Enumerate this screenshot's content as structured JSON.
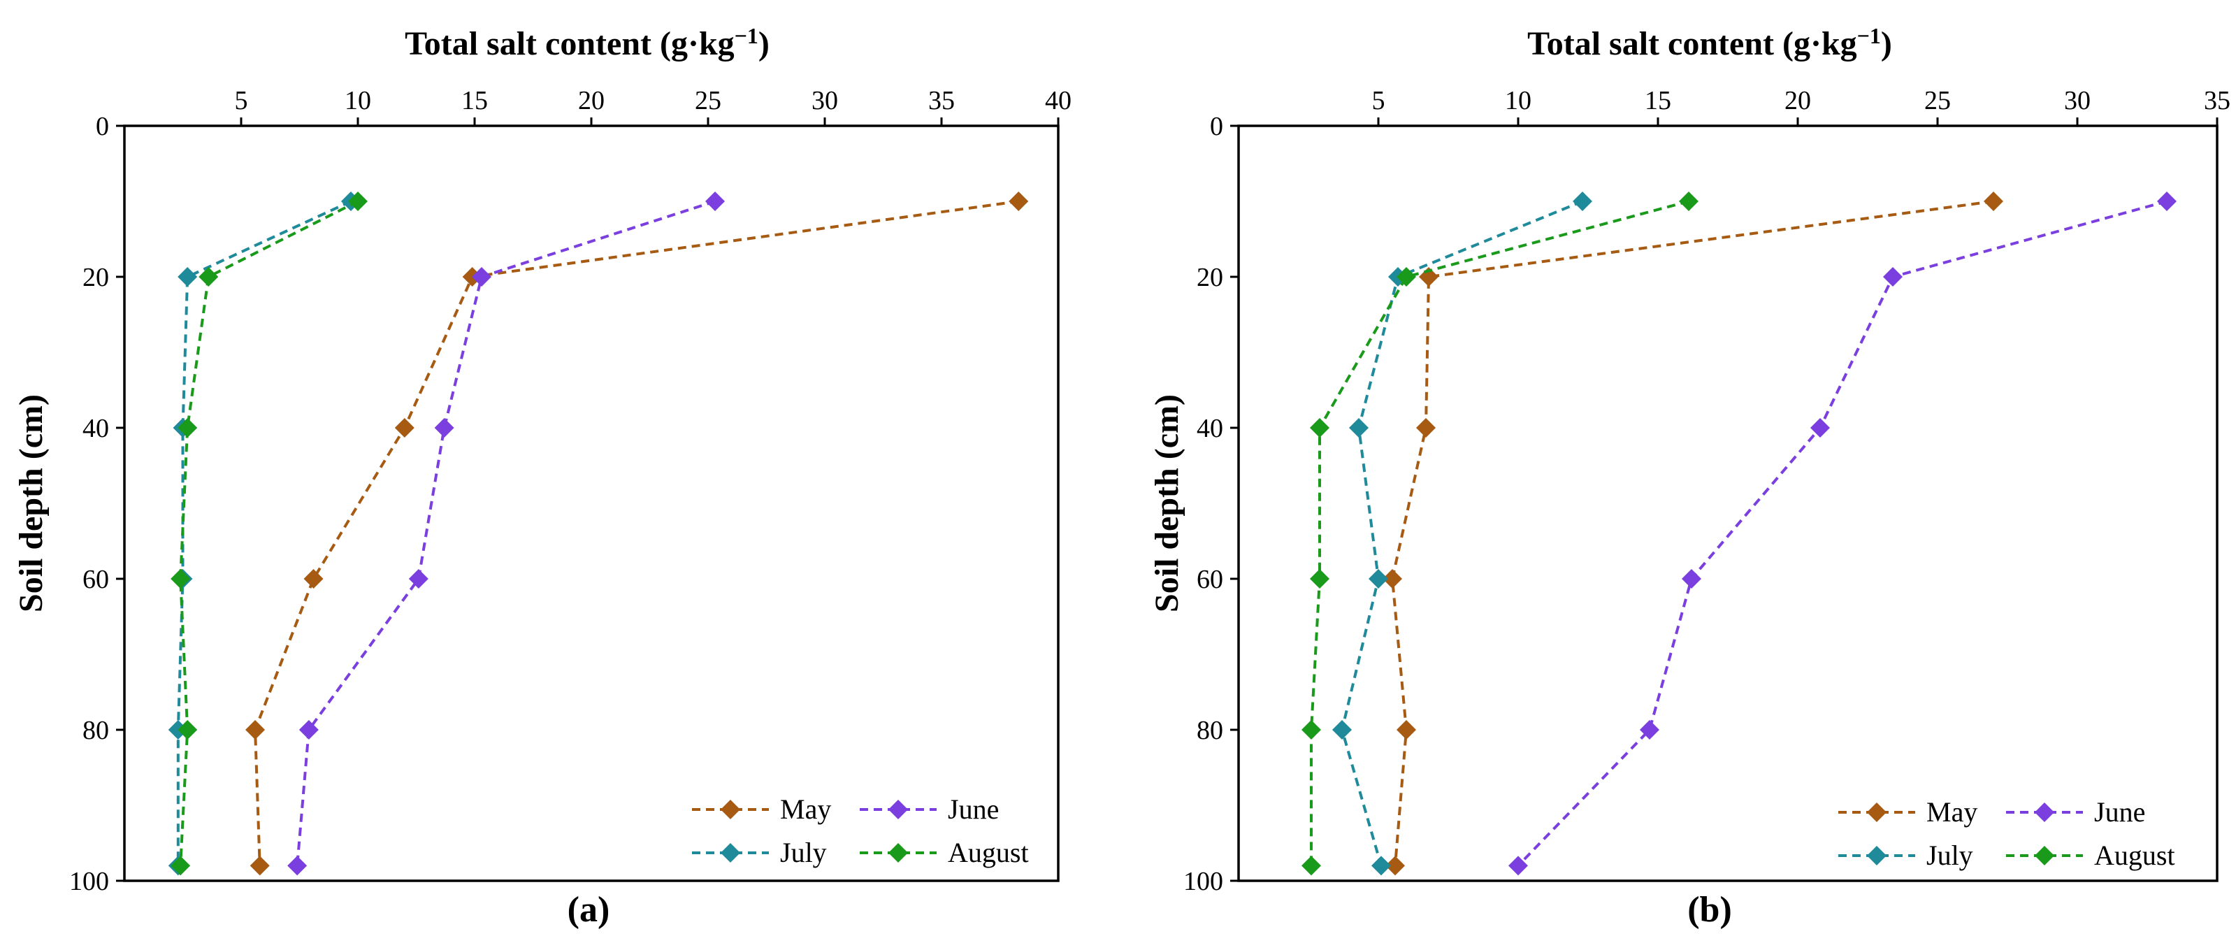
{
  "chart_data": [
    {
      "type": "line",
      "panel_label": "(a)",
      "xlabel": "Total salt content (g·kg",
      "xlabel_sup": "−1",
      "xlabel_end": ")",
      "ylabel": "Soil depth (cm)",
      "xlim": [
        0,
        40
      ],
      "xticks": [
        5,
        10,
        15,
        20,
        25,
        30,
        35,
        40
      ],
      "ylim": [
        0,
        100
      ],
      "yticks": [
        0,
        20,
        40,
        60,
        80,
        100
      ],
      "y_inverted": true,
      "x_axis_position": "top",
      "legend_position": "bottom-right",
      "depths": [
        10,
        20,
        40,
        60,
        80,
        98
      ],
      "series": [
        {
          "name": "May",
          "color": "#a65a12",
          "values": [
            38.3,
            14.9,
            12.0,
            8.1,
            5.6,
            5.8
          ]
        },
        {
          "name": "June",
          "color": "#7b3fe0",
          "values": [
            25.3,
            15.3,
            13.7,
            12.6,
            7.9,
            7.4
          ]
        },
        {
          "name": "July",
          "color": "#1e8a9a",
          "values": [
            9.7,
            2.7,
            2.5,
            2.5,
            2.3,
            2.3
          ]
        },
        {
          "name": "August",
          "color": "#1a9a1a",
          "values": [
            10.0,
            3.6,
            2.7,
            2.4,
            2.7,
            2.4
          ]
        }
      ]
    },
    {
      "type": "line",
      "panel_label": "(b)",
      "xlabel": "Total salt content (g·kg",
      "xlabel_sup": "−1",
      "xlabel_end": ")",
      "ylabel": "Soil depth (cm)",
      "xlim": [
        0,
        35
      ],
      "xticks": [
        5,
        10,
        15,
        20,
        25,
        30,
        35
      ],
      "ylim": [
        0,
        100
      ],
      "yticks": [
        0,
        20,
        40,
        60,
        80,
        100
      ],
      "y_inverted": true,
      "x_axis_position": "top",
      "legend_position": "bottom-right",
      "depths": [
        10,
        20,
        40,
        60,
        80,
        98
      ],
      "series": [
        {
          "name": "May",
          "color": "#a65a12",
          "values": [
            27.0,
            6.8,
            6.7,
            5.5,
            6.0,
            5.6
          ]
        },
        {
          "name": "June",
          "color": "#7b3fe0",
          "values": [
            33.2,
            23.4,
            20.8,
            16.2,
            14.7,
            10.0
          ]
        },
        {
          "name": "July",
          "color": "#1e8a9a",
          "values": [
            12.3,
            5.7,
            4.3,
            5.0,
            3.7,
            5.1
          ]
        },
        {
          "name": "August",
          "color": "#1a9a1a",
          "values": [
            16.1,
            6.0,
            2.9,
            2.9,
            2.6,
            2.6
          ]
        }
      ]
    }
  ]
}
